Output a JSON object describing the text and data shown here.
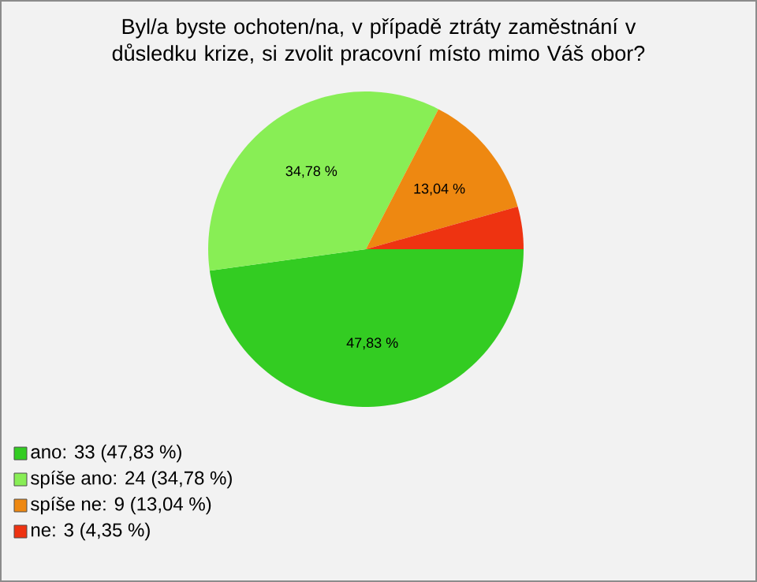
{
  "chart_data": {
    "type": "pie",
    "title": "Byl/a byste ochoten/na, v případě ztráty zaměstnání v důsledku krize, si zvolit pracovní místo mimo Váš obor?",
    "categories": [
      "ano: 33 (47,83 %)",
      "spíše ano: 24 (34,78 %)",
      "spíše ne: 9 (13,04 %)",
      "ne: 3 (4,35 %)"
    ],
    "values": [
      47.83,
      34.78,
      13.04,
      4.35
    ],
    "value_labels": [
      "47,83 %",
      "34,78 %",
      "13,04 %",
      null
    ],
    "colors": [
      "#33cc22",
      "#88ee55",
      "#ee8811",
      "#ee3311"
    ],
    "legend": "bottom left"
  }
}
